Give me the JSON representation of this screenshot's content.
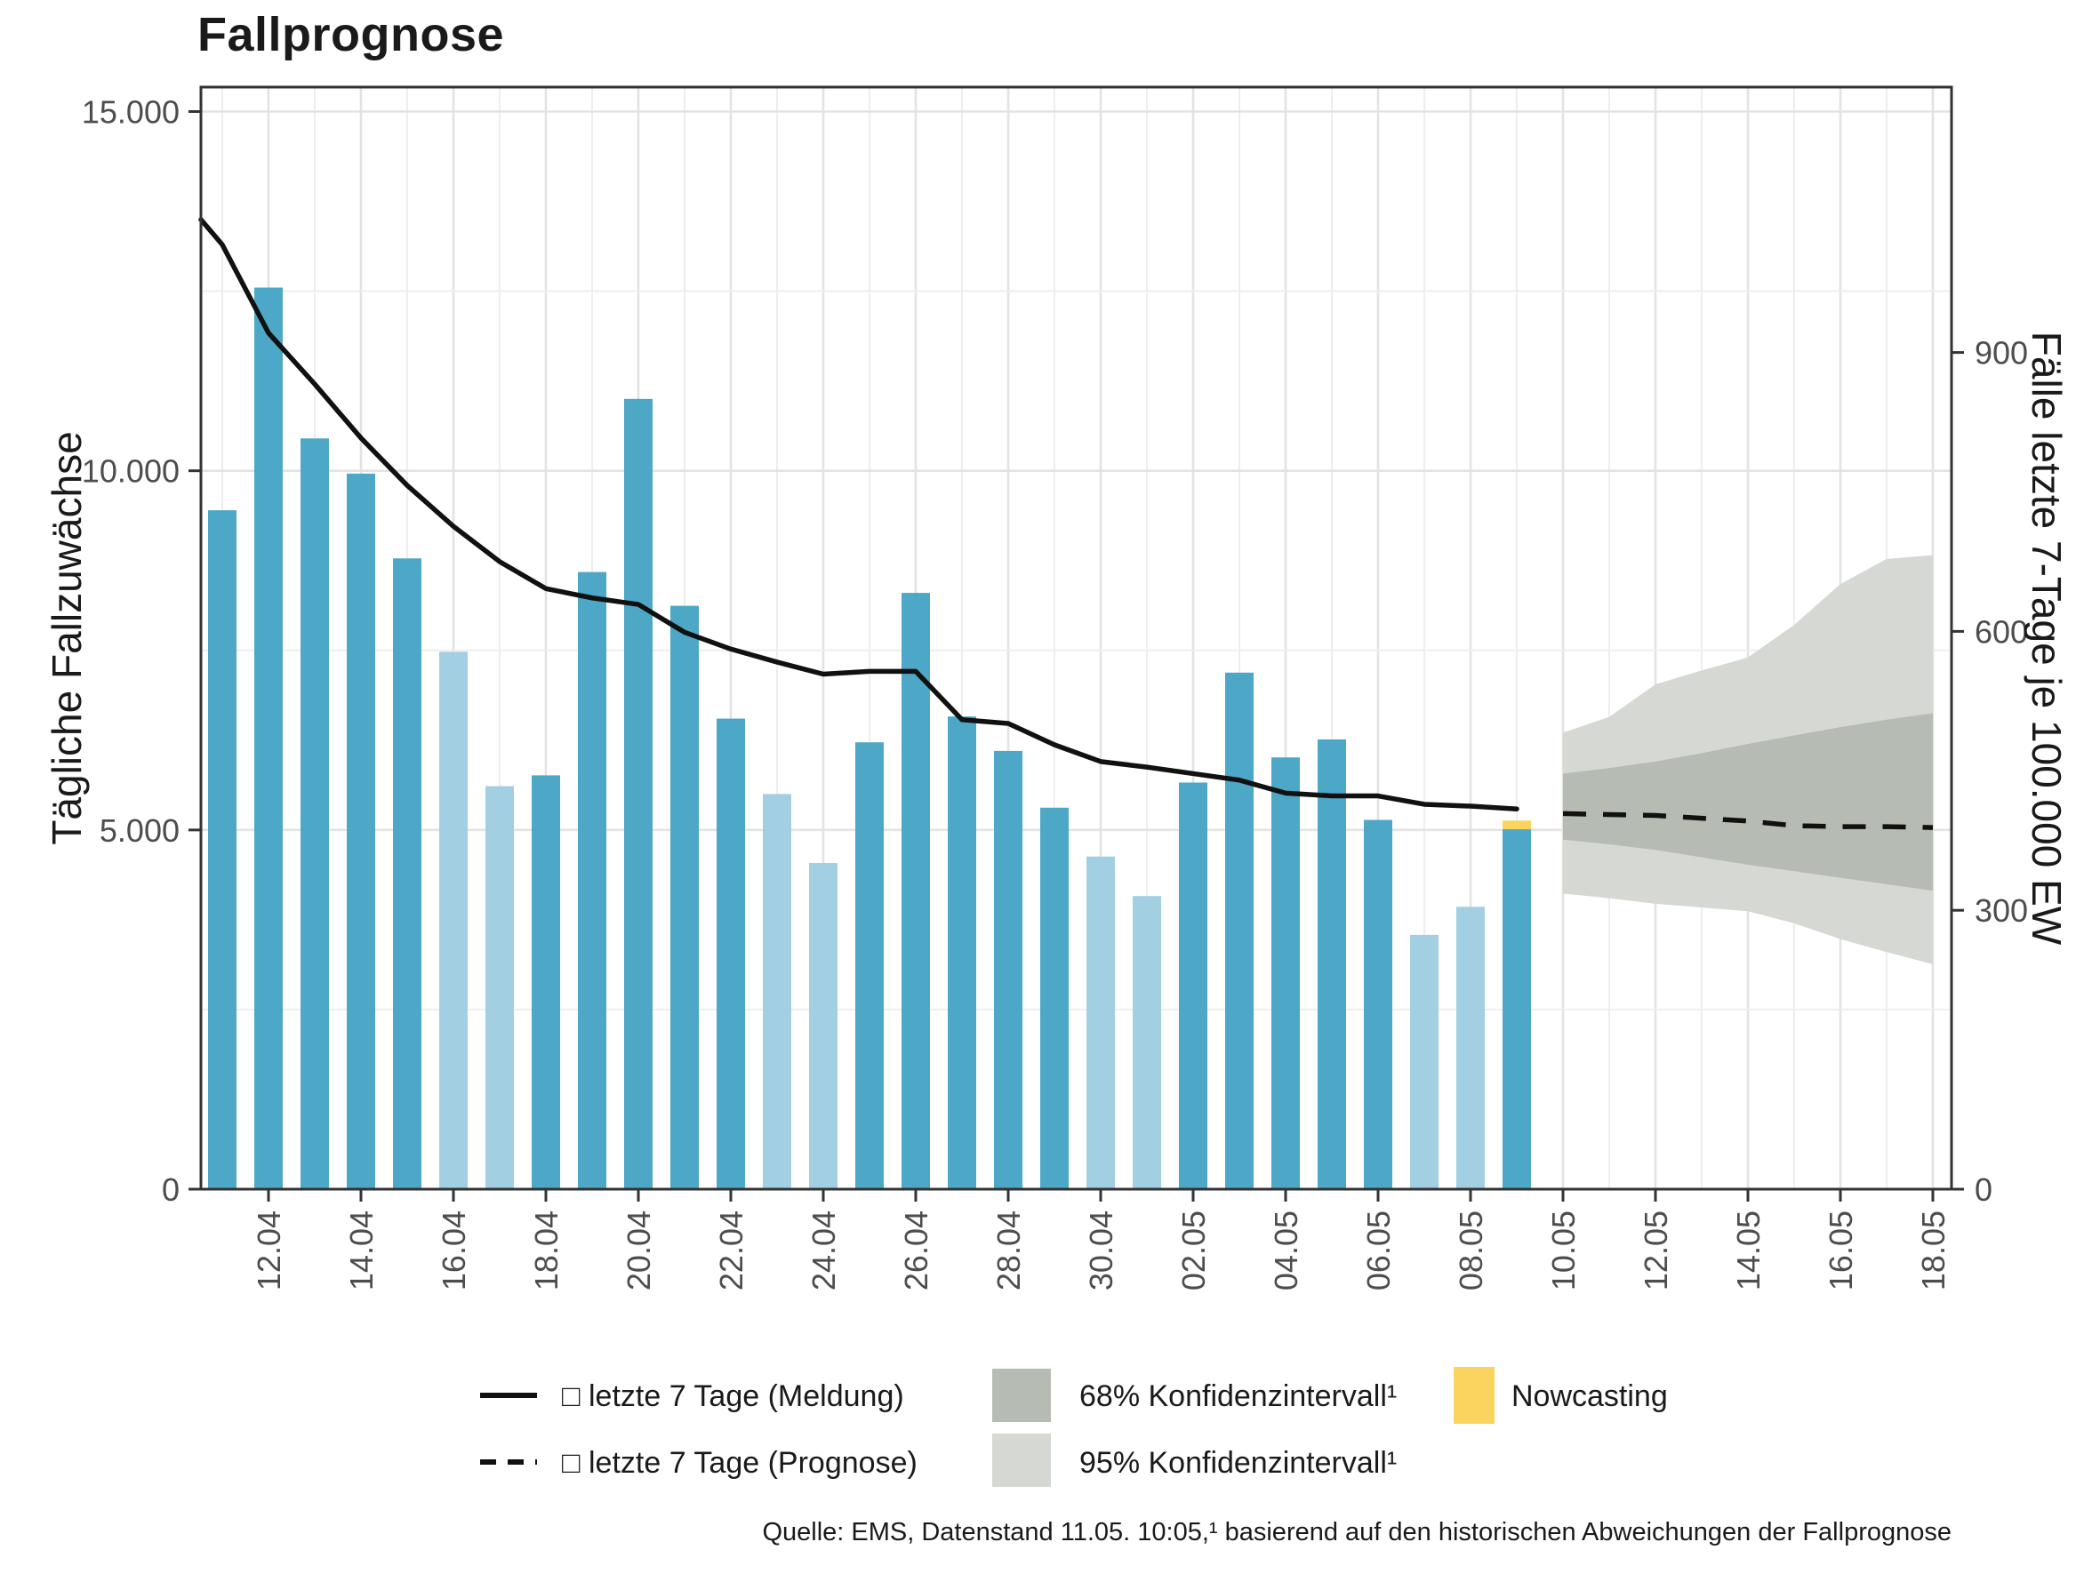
{
  "title": "Fallprognose",
  "axes": {
    "left": {
      "title": "Tägliche Fallzuwächse",
      "tick_labels": [
        "0",
        "5.000",
        "10.000",
        "15.000"
      ],
      "tick_values": [
        0,
        5000,
        10000,
        15000
      ]
    },
    "right": {
      "title": "Fälle letzte 7-Tage je 100.000 EW",
      "tick_labels": [
        "0",
        "300",
        "600",
        "900"
      ],
      "tick_values": [
        0,
        300,
        600,
        900
      ]
    },
    "x": {
      "tick_labels": [
        "12.04",
        "14.04",
        "16.04",
        "18.04",
        "20.04",
        "22.04",
        "24.04",
        "26.04",
        "28.04",
        "30.04",
        "02.05",
        "04.05",
        "06.05",
        "08.05",
        "10.05",
        "12.05",
        "14.05",
        "16.05",
        "18.05"
      ],
      "tick_day_indices": [
        1,
        3,
        5,
        7,
        9,
        11,
        13,
        15,
        17,
        19,
        21,
        23,
        25,
        27,
        29,
        31,
        33,
        35,
        37
      ]
    }
  },
  "chart_data": {
    "type": "bar",
    "title": "Fallprognose",
    "xlabel": "",
    "ylabel_left": "Tägliche Fallzuwächse",
    "ylabel_right": "Fälle letzte 7-Tage je 100.000 EW",
    "ylim_left": [
      0,
      15340
    ],
    "ylim_right": [
      0,
      1186
    ],
    "right_axis_factor": 12.94,
    "grid": "on",
    "dates": [
      "11.04",
      "12.04",
      "13.04",
      "14.04",
      "15.04",
      "16.04",
      "17.04",
      "18.04",
      "19.04",
      "20.04",
      "21.04",
      "22.04",
      "23.04",
      "24.04",
      "25.04",
      "26.04",
      "27.04",
      "28.04",
      "29.04",
      "30.04",
      "01.05",
      "02.05",
      "03.05",
      "04.05",
      "05.05",
      "06.05",
      "07.05",
      "08.05",
      "09.05"
    ],
    "bar_values": [
      9450,
      12550,
      10450,
      9960,
      8780,
      7480,
      5610,
      5760,
      8590,
      11000,
      8120,
      6550,
      5500,
      4540,
      6220,
      8300,
      6580,
      6100,
      5310,
      4630,
      4080,
      5660,
      7190,
      6010,
      6260,
      5140,
      3540,
      3930,
      5010
    ],
    "bar_shades": [
      "dark",
      "dark",
      "dark",
      "dark",
      "dark",
      "light",
      "light",
      "dark",
      "dark",
      "dark",
      "dark",
      "dark",
      "light",
      "light",
      "dark",
      "dark",
      "dark",
      "dark",
      "dark",
      "light",
      "light",
      "dark",
      "dark",
      "dark",
      "dark",
      "dark",
      "light",
      "light",
      "dark"
    ],
    "nowcasting": {
      "date": "09.05",
      "reported": 5010,
      "with_nowcast": 5130
    },
    "line_solid": {
      "name": "letzte 7 Tage (Meldung)",
      "unit": "Fälle letzte 7-Tage je 100.000 EW",
      "edge_value": 1043,
      "values": [
        1016,
        921,
        866,
        808,
        757,
        713,
        675,
        646,
        636,
        629,
        599,
        581,
        567,
        554,
        557,
        557,
        505,
        501,
        478,
        460,
        454,
        447,
        440,
        426,
        423,
        423,
        414,
        412,
        409
      ]
    },
    "forecast": {
      "dates": [
        "10.05",
        "11.05",
        "12.05",
        "13.05",
        "14.05",
        "15.05",
        "16.05",
        "17.05",
        "18.05"
      ],
      "line_dashed": {
        "name": "letzte 7 Tage (Prognose)",
        "unit": "Fälle letzte 7-Tage je 100.000 EW",
        "values": [
          404,
          403,
          402,
          399,
          396,
          391,
          390,
          390,
          389
        ]
      },
      "ci68": {
        "hi": [
          447,
          453,
          460,
          469,
          479,
          488,
          497,
          505,
          512
        ],
        "lo": [
          376,
          371,
          365,
          357,
          349,
          342,
          335,
          328,
          321
        ]
      },
      "ci95": {
        "hi": [
          491,
          508,
          543,
          558,
          572,
          607,
          651,
          678,
          682
        ],
        "lo": [
          318,
          313,
          307,
          303,
          299,
          286,
          269,
          255,
          242
        ]
      }
    },
    "legend_position": "bottom"
  },
  "legend": {
    "meldung": {
      "label": "□ letzte 7 Tage (Meldung)",
      "swatch": "solid-line"
    },
    "prognose": {
      "label": "□ letzte 7 Tage (Prognose)",
      "swatch": "dashed-line"
    },
    "ci68": {
      "label": "68% Konfidenzintervall¹",
      "swatch": "gray-dark"
    },
    "ci95": {
      "label": "95% Konfidenzintervall¹",
      "swatch": "gray-light"
    },
    "nowcasting": {
      "label": "Nowcasting",
      "swatch": "yellow"
    }
  },
  "source_note": "Quelle: EMS, Datenstand 11.05. 10:05,¹ basierend auf den historischen Abweichungen der Fallprognose",
  "colors": {
    "bar_dark": "#4da7c7",
    "bar_light": "#a2cfe2",
    "nowcast_yellow": "#fbd45f",
    "ci68": "#b6bcb4",
    "ci95": "#d6d8d4",
    "line": "#111111",
    "grid_major": "#e3e3e3",
    "grid_minor": "#eeeeee",
    "frame": "#333333",
    "tick_label": "#4d4d4d",
    "text": "#1a1a1a"
  }
}
